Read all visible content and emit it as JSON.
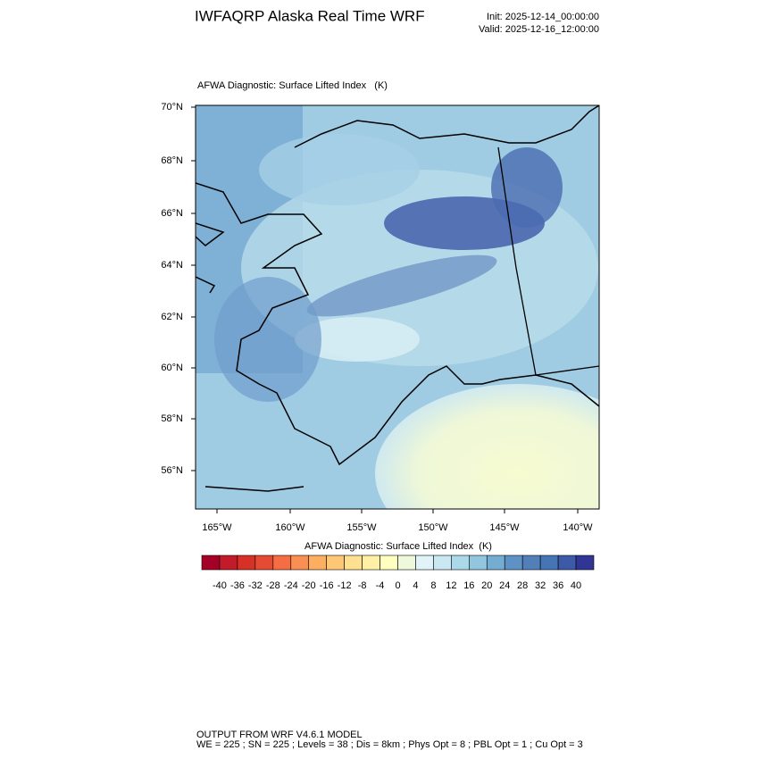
{
  "header": {
    "title": "IWFAQRP Alaska Real Time WRF",
    "init": "Init: 2025-12-14_00:00:00",
    "valid": "Valid: 2025-12-16_12:00:00"
  },
  "map": {
    "title": "AFWA Diagnostic: Surface Lifted Index   (K)",
    "lat_labels": [
      "70°N",
      "68°N",
      "66°N",
      "64°N",
      "62°N",
      "60°N",
      "58°N",
      "56°N"
    ],
    "lon_labels": [
      "165°W",
      "160°W",
      "155°W",
      "150°W",
      "145°W",
      "140°W"
    ]
  },
  "colorbar": {
    "title": "AFWA Diagnostic: Surface Lifted Index  (K)",
    "levels": [
      -40,
      -36,
      -32,
      -28,
      -24,
      -20,
      -16,
      -12,
      -8,
      -4,
      0,
      4,
      8,
      12,
      16,
      20,
      24,
      28,
      32,
      36,
      40
    ],
    "colors": [
      "#a50026",
      "#c21b29",
      "#d73027",
      "#e54a33",
      "#f46d43",
      "#f98f52",
      "#fdae61",
      "#fec776",
      "#fee090",
      "#fff0a6",
      "#ffffbf",
      "#eef8db",
      "#e0f3f8",
      "#cae8f1",
      "#abd9e9",
      "#92c5de",
      "#74add1",
      "#5e92c5",
      "#537fb9",
      "#4575b4",
      "#3c5aa8",
      "#313695"
    ]
  },
  "footer": {
    "line1": "OUTPUT FROM WRF V4.6.1 MODEL",
    "line2": "WE = 225 ; SN = 225 ; Levels = 38 ; Dis = 8km ; Phys Opt = 8 ; PBL Opt = 1 ; Cu Opt = 3"
  }
}
